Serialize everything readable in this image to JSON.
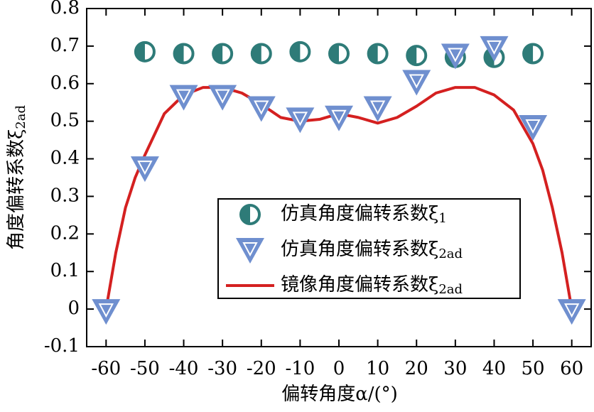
{
  "chart_data": {
    "type": "scatter-line",
    "xlabel": "偏转角度α/(°)",
    "ylabel": "角度偏转系数ξ",
    "ylabel_subscript": "2ad",
    "xlim": [
      -65,
      65
    ],
    "xticks": [
      -60,
      -50,
      -40,
      -30,
      -20,
      -10,
      0,
      10,
      20,
      30,
      40,
      50,
      60
    ],
    "ylim": [
      -0.1,
      0.8
    ],
    "yticks": [
      -0.1,
      0,
      0.1,
      0.2,
      0.3,
      0.4,
      0.5,
      0.6,
      0.7,
      0.8
    ],
    "series": [
      {
        "name": "仿真角度偏转系数ξ",
        "name_subscript": "1",
        "marker": "half-circle",
        "color": "#2e7b78",
        "x": [
          -50,
          -40,
          -30,
          -20,
          -10,
          0,
          10,
          20,
          30,
          40,
          50
        ],
        "values": [
          0.685,
          0.68,
          0.68,
          0.68,
          0.685,
          0.68,
          0.68,
          0.675,
          0.67,
          0.67,
          0.68
        ]
      },
      {
        "name": "仿真角度偏转系数ξ",
        "name_subscript": "2ad",
        "marker": "triangle-down",
        "color": "#6f8fcf",
        "x": [
          -60,
          -50,
          -40,
          -30,
          -20,
          -10,
          0,
          10,
          20,
          30,
          40,
          50,
          60
        ],
        "values": [
          0,
          0.38,
          0.57,
          0.57,
          0.54,
          0.51,
          0.515,
          0.54,
          0.61,
          0.68,
          0.7,
          0.49,
          0
        ]
      },
      {
        "name": "镜像角度偏转系数ξ",
        "name_subscript": "2ad",
        "marker": "line",
        "color": "#d42020",
        "x": [
          -60,
          -57.5,
          -55,
          -52.5,
          -50,
          -45,
          -40,
          -35,
          -30,
          -25,
          -20,
          -15,
          -10,
          -5,
          0,
          5,
          10,
          15,
          20,
          25,
          30,
          35,
          40,
          45,
          50,
          52.5,
          55,
          57.5,
          60
        ],
        "values": [
          0,
          0.15,
          0.27,
          0.35,
          0.41,
          0.52,
          0.57,
          0.59,
          0.59,
          0.575,
          0.545,
          0.51,
          0.5,
          0.505,
          0.52,
          0.51,
          0.495,
          0.51,
          0.54,
          0.575,
          0.59,
          0.59,
          0.57,
          0.53,
          0.44,
          0.37,
          0.27,
          0.15,
          0
        ]
      }
    ]
  }
}
